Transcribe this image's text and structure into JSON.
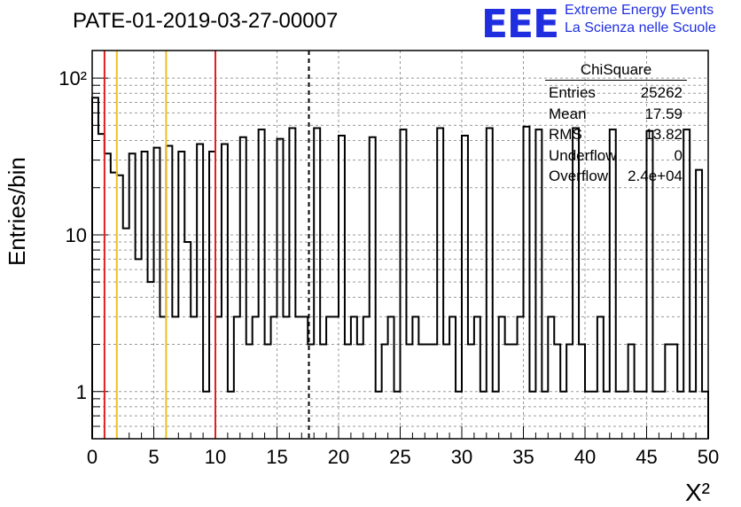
{
  "header": {
    "title": "PATE-01-2019-03-27-00007",
    "logo_text": "EEE",
    "brand_line1": "Extreme Energy Events",
    "brand_line2": "La Scienza nelle Scuole"
  },
  "colors": {
    "brand": "#1f2fe0",
    "red_line": "#e02020",
    "orange_line": "#f0c020",
    "hist": "#000000"
  },
  "stats": {
    "title": "ChiSquare",
    "rows": [
      {
        "label": "Entries",
        "value": "25262"
      },
      {
        "label": "Mean",
        "value": "17.59"
      },
      {
        "label": "RMS",
        "value": "13.82"
      },
      {
        "label": "Underflow",
        "value": "0"
      },
      {
        "label": "Overflow",
        "value": "2.4e+04"
      }
    ]
  },
  "chart_data": {
    "type": "histogram",
    "title": "PATE-01-2019-03-27-00007",
    "xlabel": "X²",
    "ylabel": "Entries/bin",
    "yscale": "log",
    "xlim": [
      0,
      50
    ],
    "ylim": [
      0.5,
      150
    ],
    "bin_width": 0.5,
    "x_ticks": [
      "0",
      "5",
      "10",
      "15",
      "20",
      "25",
      "30",
      "35",
      "40",
      "45",
      "50"
    ],
    "y_ticks": [
      {
        "value": 1,
        "label": "1"
      },
      {
        "value": 10,
        "label": "10"
      },
      {
        "value": 100,
        "label": "10²"
      }
    ],
    "values": [
      75,
      44,
      33,
      25,
      24,
      11,
      33,
      7,
      34,
      5,
      36,
      3,
      37,
      3,
      34,
      9,
      3,
      38,
      1,
      34,
      3,
      38,
      1,
      3,
      42,
      2,
      3,
      47,
      2,
      3,
      41,
      3,
      48,
      3,
      3,
      2,
      48,
      2,
      3,
      3,
      43,
      2,
      3,
      2,
      3,
      42,
      1,
      2,
      3,
      1,
      47,
      2,
      3,
      2,
      2,
      2,
      48,
      2,
      3,
      1,
      43,
      2,
      3,
      1,
      48,
      1,
      3,
      2,
      2,
      3,
      49,
      1,
      47,
      1,
      3,
      2,
      1,
      2,
      48,
      2,
      1,
      1,
      3,
      1,
      47,
      1,
      1,
      2,
      1,
      1,
      46,
      1,
      1,
      2,
      2,
      1,
      47,
      1,
      26,
      1
    ],
    "vertical_lines": [
      {
        "x": 1,
        "color": "#e02020",
        "style": "solid"
      },
      {
        "x": 2,
        "color": "#f0c020",
        "style": "solid"
      },
      {
        "x": 6,
        "color": "#f0c020",
        "style": "solid"
      },
      {
        "x": 10,
        "color": "#e02020",
        "style": "solid"
      },
      {
        "x": 17.59,
        "color": "#000000",
        "style": "dashed"
      }
    ]
  }
}
